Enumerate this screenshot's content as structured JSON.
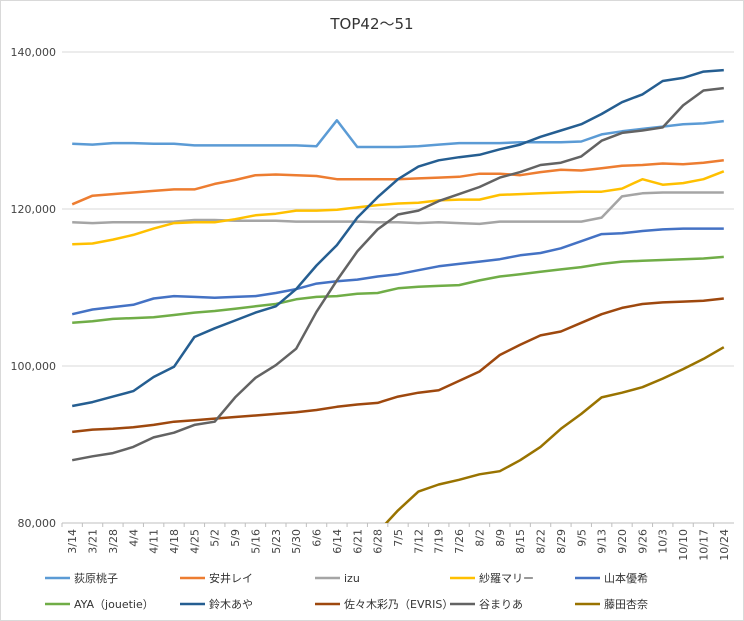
{
  "chart_data": {
    "type": "line",
    "title": "TOP42～51",
    "xlabel": "",
    "ylabel": "",
    "ylim": [
      80000,
      140000
    ],
    "yticks": [
      80000,
      100000,
      120000,
      140000
    ],
    "ytick_labels": [
      "80,000",
      "100,000",
      "120,000",
      "140,000"
    ],
    "grid": true,
    "legend_position": "bottom",
    "categories": [
      "3/14",
      "3/21",
      "3/28",
      "4/4",
      "4/11",
      "4/18",
      "4/25",
      "5/2",
      "5/9",
      "5/16",
      "5/23",
      "5/30",
      "6/6",
      "6/14",
      "6/21",
      "6/28",
      "7/5",
      "7/12",
      "7/19",
      "7/26",
      "8/2",
      "8/9",
      "8/15",
      "8/22",
      "8/29",
      "9/5",
      "9/13",
      "9/20",
      "9/26",
      "10/3",
      "10/10",
      "10/17",
      "10/24"
    ],
    "series": [
      {
        "name": "荻原桃子",
        "color": "#5b9bd5",
        "values": [
          128300,
          128200,
          128400,
          128400,
          128300,
          128300,
          128100,
          128100,
          128100,
          128100,
          128100,
          128100,
          128000,
          131300,
          127900,
          127900,
          127900,
          128000,
          128200,
          128400,
          128400,
          128400,
          128500,
          128500,
          128500,
          128600,
          129500,
          129900,
          130200,
          130500,
          130800,
          130900,
          131200
        ]
      },
      {
        "name": "安井レイ",
        "color": "#ed7d31",
        "values": [
          120600,
          121700,
          121900,
          122100,
          122300,
          122500,
          122500,
          123200,
          123700,
          124300,
          124400,
          124300,
          124200,
          123800,
          123800,
          123800,
          123800,
          123900,
          124000,
          124100,
          124500,
          124500,
          124300,
          124700,
          125000,
          124900,
          125200,
          125500,
          125600,
          125800,
          125700,
          125900,
          126200
        ]
      },
      {
        "name": "izu",
        "color": "#a5a5a5",
        "values": [
          118300,
          118200,
          118300,
          118300,
          118300,
          118400,
          118600,
          118600,
          118500,
          118500,
          118500,
          118400,
          118400,
          118400,
          118400,
          118300,
          118300,
          118200,
          118300,
          118200,
          118100,
          118400,
          118400,
          118400,
          118400,
          118400,
          118900,
          121600,
          122000,
          122100,
          122100,
          122100,
          122100
        ]
      },
      {
        "name": "紗羅マリー",
        "color": "#ffc000",
        "values": [
          115500,
          115600,
          116100,
          116700,
          117500,
          118200,
          118300,
          118300,
          118700,
          119200,
          119400,
          119800,
          119800,
          119900,
          120200,
          120500,
          120700,
          120800,
          121100,
          121200,
          121200,
          121800,
          121900,
          122000,
          122100,
          122200,
          122200,
          122600,
          123800,
          123100,
          123300,
          123800,
          124800
        ]
      },
      {
        "name": "山本優希",
        "color": "#4472c4",
        "values": [
          106600,
          107200,
          107500,
          107800,
          108600,
          108900,
          108800,
          108700,
          108800,
          108900,
          109300,
          109800,
          110500,
          110800,
          111000,
          111400,
          111700,
          112200,
          112700,
          113000,
          113300,
          113600,
          114100,
          114400,
          115000,
          115900,
          116800,
          116900,
          117200,
          117400,
          117500,
          117500,
          117500
        ]
      },
      {
        "name": "AYA（jouetie）",
        "color": "#70ad47",
        "values": [
          105500,
          105700,
          106000,
          106100,
          106200,
          106500,
          106800,
          107000,
          107300,
          107600,
          107900,
          108500,
          108800,
          108900,
          109200,
          109300,
          109900,
          110100,
          110200,
          110300,
          110900,
          111400,
          111700,
          112000,
          112300,
          112600,
          113000,
          113300,
          113400,
          113500,
          113600,
          113700,
          113900
        ]
      },
      {
        "name": "鈴木あや",
        "color": "#255e91",
        "values": [
          94900,
          95400,
          96100,
          96800,
          98600,
          99900,
          103700,
          104800,
          105800,
          106800,
          107600,
          109800,
          112800,
          115400,
          118900,
          121500,
          123800,
          125400,
          126200,
          126600,
          126900,
          127600,
          128200,
          129200,
          130000,
          130800,
          132100,
          133600,
          134600,
          136300,
          136700,
          137500,
          137700
        ]
      },
      {
        "name": "佐々木彩乃（EVRIS）",
        "color": "#9e480e",
        "values": [
          91600,
          91900,
          92000,
          92200,
          92500,
          92900,
          93100,
          93300,
          93500,
          93700,
          93900,
          94100,
          94400,
          94800,
          95100,
          95300,
          96100,
          96600,
          96900,
          98100,
          99300,
          101400,
          102700,
          103900,
          104400,
          105500,
          106600,
          107400,
          107900,
          108100,
          108200,
          108300,
          108600
        ]
      },
      {
        "name": "谷まりあ",
        "color": "#636363",
        "values": [
          88000,
          88500,
          88900,
          89700,
          90900,
          91500,
          92500,
          92900,
          96000,
          98500,
          100100,
          102200,
          106900,
          110900,
          114600,
          117400,
          119300,
          119800,
          121000,
          121900,
          122800,
          124000,
          124700,
          125600,
          125900,
          126700,
          128700,
          129700,
          130000,
          130400,
          133200,
          135100,
          135400
        ]
      },
      {
        "name": "藤田杏奈",
        "color": "#997300",
        "values": [
          null,
          null,
          null,
          null,
          null,
          null,
          null,
          null,
          null,
          null,
          null,
          null,
          null,
          null,
          null,
          78800,
          81600,
          84000,
          84900,
          85500,
          86200,
          86600,
          88000,
          89700,
          92000,
          93900,
          96000,
          96600,
          97300,
          98400,
          99600,
          100900,
          102400
        ]
      }
    ]
  }
}
